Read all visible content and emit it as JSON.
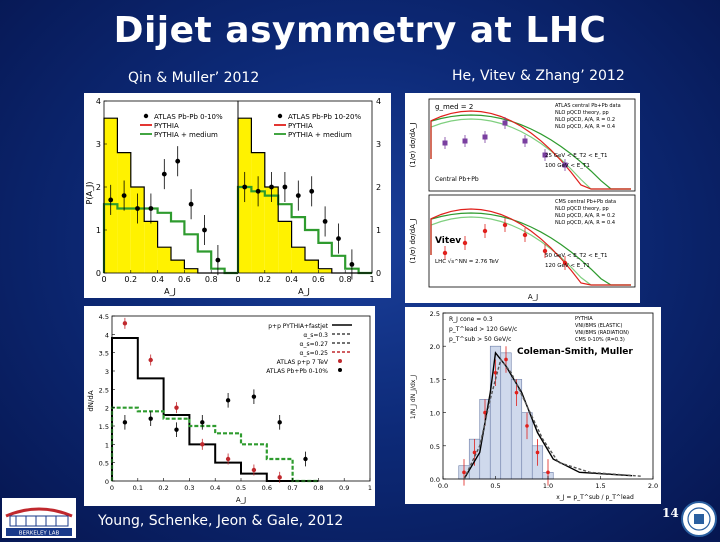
{
  "slide": {
    "title": "Dijet asymmetry at LHC",
    "page_number": "14",
    "captions": {
      "top_left": "Qin & Muller’ 2012",
      "top_right": "He, Vitev & Zhang’ 2012",
      "bottom_left": "Young, Schenke, Jeon & Gale, 2012"
    },
    "logo_left_text": "BERKELEY LAB"
  },
  "chart_data": [
    {
      "type": "bar",
      "panel": "qin-muller-left",
      "xlabel": "A_J",
      "ylabel": "P(A_J)",
      "xlim": [
        0,
        1
      ],
      "ylim": [
        0,
        4
      ],
      "xticks": [
        "0",
        "0.2",
        "0.4",
        "0.6",
        "0.8"
      ],
      "yticks": [
        "0",
        "1",
        "2",
        "3",
        "4"
      ],
      "legend": [
        "ATLAS Pb-Pb 0-10%",
        "PYTHIA",
        "PYTHIA + medium"
      ],
      "categories": [
        0.05,
        0.15,
        0.25,
        0.35,
        0.45,
        0.55,
        0.65,
        0.75,
        0.85,
        0.95
      ],
      "series": [
        {
          "name": "PYTHIA",
          "values": [
            3.6,
            2.8,
            2.0,
            1.2,
            0.6,
            0.3,
            0.1,
            0.0,
            0.0,
            0.0
          ]
        },
        {
          "name": "PYTHIA + medium",
          "values": [
            1.6,
            1.5,
            1.5,
            1.5,
            1.4,
            1.2,
            0.9,
            0.5,
            0.1,
            0.0
          ]
        },
        {
          "name": "ATLAS Pb-Pb 0-10%",
          "values": [
            1.7,
            1.8,
            1.5,
            1.5,
            2.3,
            2.6,
            1.6,
            1.0,
            0.3,
            0.0
          ]
        }
      ]
    },
    {
      "type": "bar",
      "panel": "qin-muller-right",
      "xlabel": "A_J",
      "xlim": [
        0,
        1
      ],
      "ylim": [
        0,
        4
      ],
      "xticks": [
        "0",
        "0.2",
        "0.4",
        "0.6",
        "0.8",
        "1"
      ],
      "yticks": [
        "0",
        "1",
        "2",
        "3",
        "4"
      ],
      "legend": [
        "ATLAS Pb-Pb 10-20%",
        "PYTHIA",
        "PYTHIA + medium"
      ],
      "categories": [
        0.05,
        0.15,
        0.25,
        0.35,
        0.45,
        0.55,
        0.65,
        0.75,
        0.85,
        0.95
      ],
      "series": [
        {
          "name": "PYTHIA",
          "values": [
            3.6,
            2.8,
            2.0,
            1.2,
            0.6,
            0.3,
            0.1,
            0.0,
            0.0,
            0.0
          ]
        },
        {
          "name": "PYTHIA + medium",
          "values": [
            2.0,
            1.9,
            1.8,
            1.6,
            1.3,
            1.0,
            0.7,
            0.4,
            0.1,
            0.0
          ]
        },
        {
          "name": "ATLAS Pb-Pb 10-20%",
          "values": [
            2.0,
            1.9,
            2.0,
            2.0,
            1.8,
            1.9,
            1.2,
            0.8,
            0.2,
            0.0
          ]
        }
      ]
    },
    {
      "type": "line",
      "panel": "he-vitev-zhang",
      "xlabel": "A_J",
      "ylabel": "(1/σ) dσ/dA_J",
      "legend": [
        "ATLAS central Pb+Pb data",
        "NLO pQCD theory, pp",
        "NLO pQCD, A/A, R = 0.2",
        "NLO pQCD, A/A, R = 0.4",
        "CMS central Pb+Pb data"
      ],
      "annotations": [
        "g_med = 2",
        "25 GeV < E_T2 < E_T1",
        "100 GeV < E_T1",
        "Central Pb+Pb",
        "Vitev",
        "LHC √s^NN = 2.76 TeV",
        "50 GeV < E_T2 < E_T1",
        "120 GeV < E_T1"
      ]
    },
    {
      "type": "bar",
      "panel": "young-schenke-jeon-gale",
      "xlabel": "A_J",
      "ylabel": "dN/dA",
      "xlim": [
        0,
        1
      ],
      "ylim": [
        0,
        4.5
      ],
      "xticks": [
        "0",
        "0.1",
        "0.2",
        "0.3",
        "0.4",
        "0.5",
        "0.6",
        "0.7",
        "0.8",
        "0.9",
        "1"
      ],
      "yticks": [
        "0",
        "0.5",
        "1",
        "1.5",
        "2",
        "2.5",
        "3",
        "3.5",
        "4",
        "4.5"
      ],
      "legend": [
        "p+p PYTHIA+fastjet",
        "α_s=0.3",
        "α_s=0.27",
        "α_s=0.25",
        "ATLAS p+p 7 TeV",
        "ATLAS Pb+Pb 0-10%"
      ],
      "categories": [
        0.05,
        0.15,
        0.25,
        0.35,
        0.45,
        0.55,
        0.65,
        0.75
      ],
      "series": [
        {
          "name": "p+p PYTHIA+fastjet",
          "values": [
            3.9,
            2.8,
            1.8,
            1.0,
            0.5,
            0.2,
            0.0,
            0.0
          ]
        },
        {
          "name": "α_s=0.3",
          "values": [
            2.0,
            1.9,
            1.7,
            1.5,
            1.3,
            1.0,
            0.6,
            0.0
          ]
        },
        {
          "name": "ATLAS p+p 7 TeV",
          "values": [
            4.3,
            3.3,
            2.0,
            1.0,
            0.6,
            0.3,
            0.1,
            0.0
          ]
        },
        {
          "name": "ATLAS Pb+Pb 0-10%",
          "values": [
            1.6,
            1.7,
            1.4,
            1.6,
            2.2,
            2.3,
            1.6,
            0.6
          ]
        }
      ]
    },
    {
      "type": "bar",
      "panel": "coleman-smith-muller",
      "xlabel": "x_J = p_T^sub / p_T^lead",
      "ylabel": "1/N_J dN_J/dx_J",
      "xlim": [
        0,
        2
      ],
      "ylim": [
        0,
        2.5
      ],
      "xticks": [
        "0.0",
        "0.5",
        "1.0",
        "1.5",
        "2.0"
      ],
      "yticks": [
        "0.0",
        "0.5",
        "1.0",
        "1.5",
        "2.0",
        "2.5"
      ],
      "legend": [
        "PYTHIA",
        "VNI/BMS (ELASTIC)",
        "VNI/BMS (RADIATION)",
        "CMS 0-10% (R=0.3)"
      ],
      "annotations": [
        "R_J cone = 0.3",
        "p_T^lead > 120 GeV/c",
        "p_T^sub > 50 GeV/c",
        "Coleman-Smith, Muller"
      ],
      "categories": [
        0.1,
        0.2,
        0.3,
        0.4,
        0.5,
        0.6,
        0.7,
        0.8,
        0.9,
        1.0
      ],
      "series": [
        {
          "name": "PYTHIA",
          "values": [
            0.0,
            0.2,
            0.6,
            1.2,
            2.0,
            1.9,
            1.5,
            1.0,
            0.5,
            0.1
          ]
        },
        {
          "name": "CMS 0-10% (R=0.3)",
          "values": [
            0.0,
            0.1,
            0.4,
            1.0,
            1.6,
            1.8,
            1.3,
            0.8,
            0.4,
            0.1
          ]
        }
      ]
    }
  ]
}
